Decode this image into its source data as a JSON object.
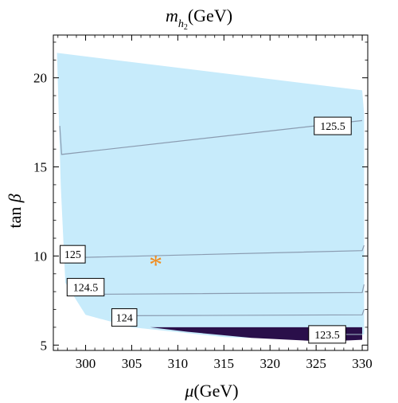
{
  "chart_data": {
    "type": "contour",
    "title_main": "m",
    "title_sub": "h",
    "title_subsub": "2",
    "title_unit": "(GeV)",
    "xlabel_symbol": "μ",
    "xlabel_unit": "(GeV)",
    "ylabel_prefix": "tan",
    "ylabel_symbol": "β",
    "xlim": [
      296.5,
      330.6
    ],
    "ylim": [
      4.7,
      22.4
    ],
    "x_ticks": [
      300,
      305,
      310,
      315,
      320,
      325,
      330
    ],
    "y_ticks": [
      5,
      10,
      15,
      20
    ],
    "region_color": "#c7ebfb",
    "dark_region_color": "#2a0f4a",
    "contour_color": "#8a9bb0",
    "marker_color": "#f08c1e",
    "allowed_region_boundary": [
      {
        "x": 296.9,
        "y": 21.4
      },
      {
        "x": 330.0,
        "y": 19.3
      },
      {
        "x": 330.2,
        "y": 18.0
      },
      {
        "x": 330.2,
        "y": 5.6
      },
      {
        "x": 325.0,
        "y": 5.3
      },
      {
        "x": 315.0,
        "y": 5.45
      },
      {
        "x": 305.0,
        "y": 6.0
      },
      {
        "x": 300.0,
        "y": 6.7
      },
      {
        "x": 297.8,
        "y": 8.5
      },
      {
        "x": 297.3,
        "y": 14.0
      }
    ],
    "dark_region": [
      {
        "x": 307.0,
        "y": 6.0
      },
      {
        "x": 330.0,
        "y": 6.0
      },
      {
        "x": 330.0,
        "y": 5.3
      },
      {
        "x": 326.0,
        "y": 5.2
      },
      {
        "x": 318.0,
        "y": 5.4
      },
      {
        "x": 311.0,
        "y": 5.75
      }
    ],
    "contours": [
      {
        "level": "125.5",
        "points": [
          {
            "x": 297.2,
            "y": 17.3
          },
          {
            "x": 297.4,
            "y": 15.7
          },
          {
            "x": 330.0,
            "y": 17.6
          }
        ],
        "label_at": {
          "x": 326.8,
          "y": 17.3
        }
      },
      {
        "level": "125",
        "points": [
          {
            "x": 298.0,
            "y": 9.9
          },
          {
            "x": 330.0,
            "y": 10.3
          },
          {
            "x": 330.2,
            "y": 10.6
          }
        ],
        "label_at": {
          "x": 298.6,
          "y": 10.1
        }
      },
      {
        "level": "124.5",
        "points": [
          {
            "x": 301.0,
            "y": 7.85
          },
          {
            "x": 330.0,
            "y": 7.95
          },
          {
            "x": 330.2,
            "y": 8.4
          }
        ],
        "label_at": {
          "x": 300.0,
          "y": 8.25
        }
      },
      {
        "level": "124",
        "points": [
          {
            "x": 305.0,
            "y": 6.65
          },
          {
            "x": 330.0,
            "y": 6.7
          },
          {
            "x": 330.2,
            "y": 7.0
          }
        ],
        "label_at": {
          "x": 304.2,
          "y": 6.55
        }
      },
      {
        "level": "123.5",
        "points": [
          {
            "x": 325.5,
            "y": 5.6
          },
          {
            "x": 330.0,
            "y": 5.6
          }
        ],
        "label_at": {
          "x": 326.2,
          "y": 5.6
        }
      }
    ],
    "marker": {
      "symbol": "*",
      "x": 307.6,
      "y": 9.8
    }
  }
}
